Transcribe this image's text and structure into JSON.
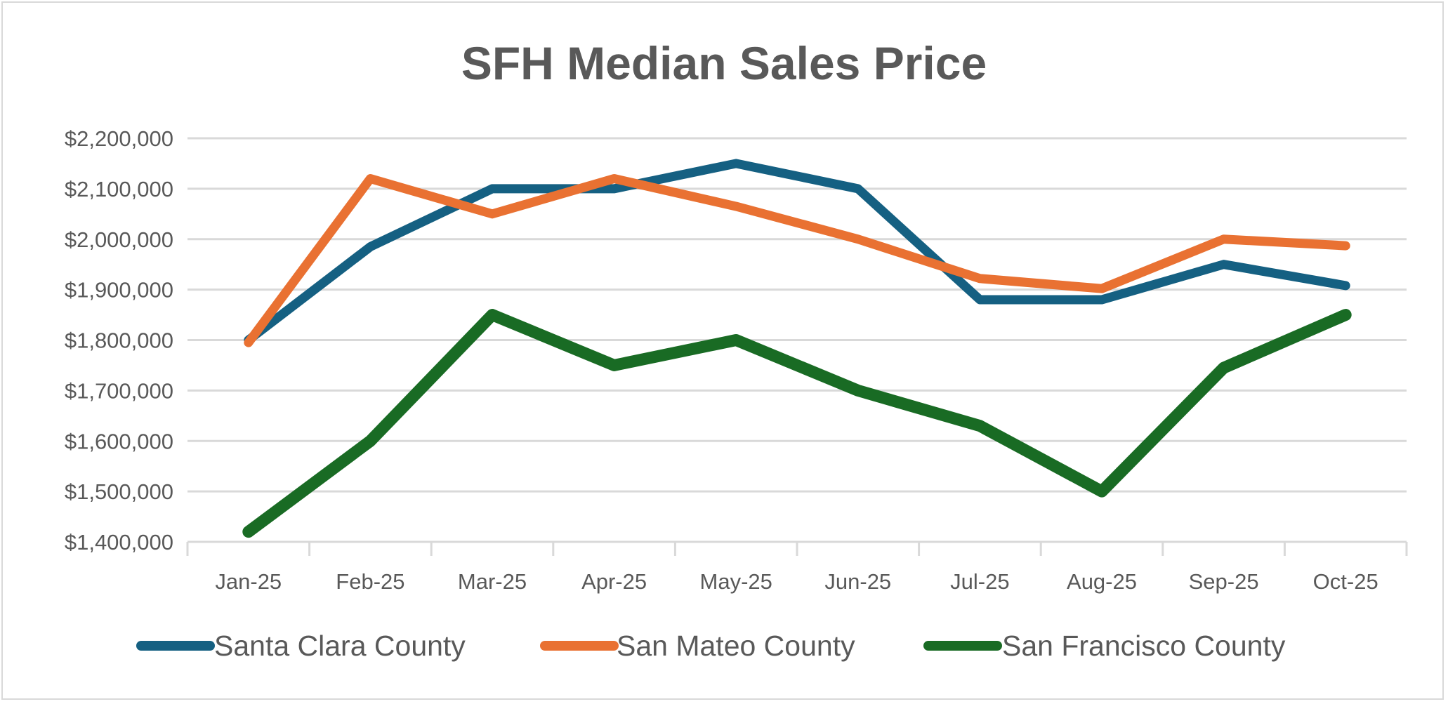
{
  "chart_data": {
    "type": "line",
    "title": "SFH Median Sales Price",
    "xlabel": "",
    "ylabel": "",
    "categories": [
      "Jan-25",
      "Feb-25",
      "Mar-25",
      "Apr-25",
      "May-25",
      "Jun-25",
      "Jul-25",
      "Aug-25",
      "Sep-25",
      "Oct-25"
    ],
    "ylim": [
      1400000,
      2200000
    ],
    "yticks": [
      1400000,
      1500000,
      1600000,
      1700000,
      1800000,
      1900000,
      2000000,
      2100000,
      2200000
    ],
    "ytick_labels": [
      "$1,400,000",
      "$1,500,000",
      "$1,600,000",
      "$1,700,000",
      "$1,800,000",
      "$1,900,000",
      "$2,000,000",
      "$2,100,000",
      "$2,200,000"
    ],
    "grid": true,
    "legend_position": "bottom",
    "series": [
      {
        "name": "Santa Clara County",
        "color": "#156082",
        "values": [
          1800000,
          1985000,
          2100000,
          2100000,
          2150000,
          2100000,
          1880000,
          1880000,
          1950000,
          1908000
        ]
      },
      {
        "name": "San Mateo County",
        "color": "#E97132",
        "values": [
          1795000,
          2120000,
          2050000,
          2120000,
          2065000,
          2000000,
          1922000,
          1902000,
          2000000,
          1987000
        ]
      },
      {
        "name": "San Francisco County",
        "color": "#196B24",
        "values": [
          1420000,
          1600000,
          1850000,
          1750000,
          1800000,
          1700000,
          1630000,
          1500000,
          1745000,
          1850000
        ]
      }
    ]
  }
}
